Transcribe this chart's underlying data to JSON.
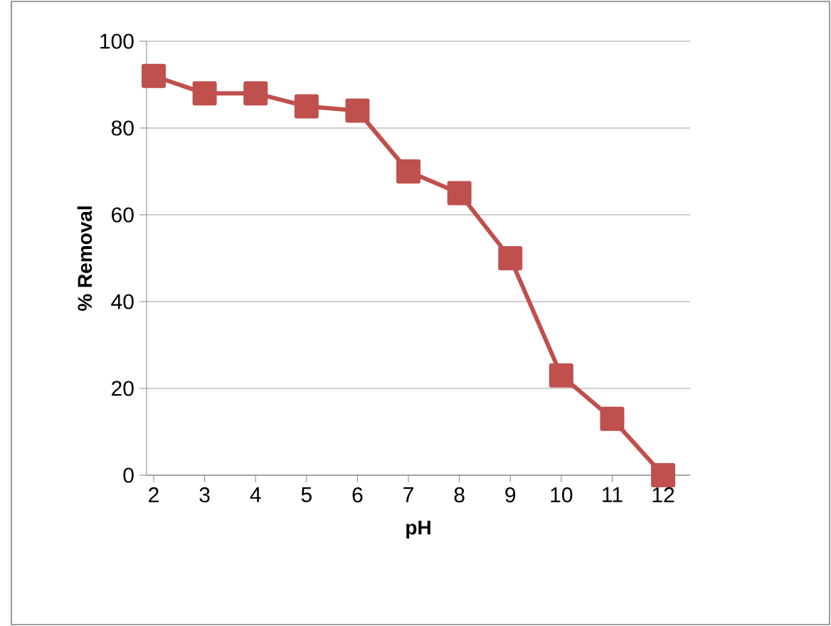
{
  "chart_data": {
    "type": "line",
    "xlabel": "pH",
    "ylabel": "% Removal",
    "categories": [
      "2",
      "3",
      "4",
      "5",
      "6",
      "7",
      "8",
      "9",
      "10",
      "11",
      "12"
    ],
    "series": [
      {
        "color": "#c0504d",
        "values": [
          92,
          88,
          88,
          85,
          84,
          70,
          65,
          50,
          23,
          13,
          0
        ]
      }
    ],
    "ylim": [
      0,
      100
    ],
    "yticks": [
      0,
      20,
      40,
      60,
      80,
      100
    ],
    "grid": "y",
    "marker": "square",
    "line_style": "solid"
  }
}
